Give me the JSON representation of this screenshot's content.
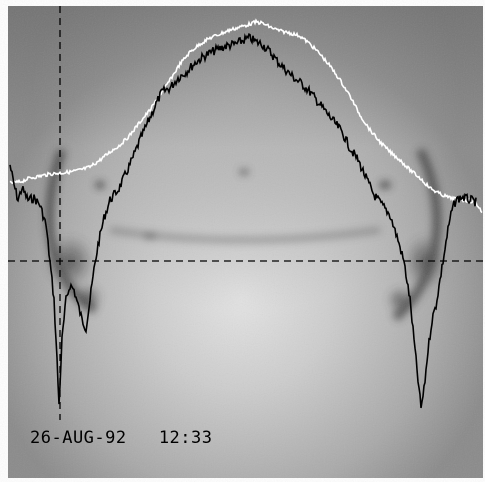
{
  "image": {
    "caption": "26-AUG-92   12:33",
    "colors": {
      "frame": "#ffffff",
      "background_gray": "#9a9a9a",
      "dark_curve": "#000000",
      "bright_curve": "#ffffff",
      "crosshair": "#000000"
    },
    "elements": [
      "grayscale-astronomical-image",
      "dark-intensity-profile",
      "bright-intensity-profile",
      "vertical-dashed-crosshair",
      "horizontal-dashed-crosshair",
      "date-time-caption"
    ]
  }
}
